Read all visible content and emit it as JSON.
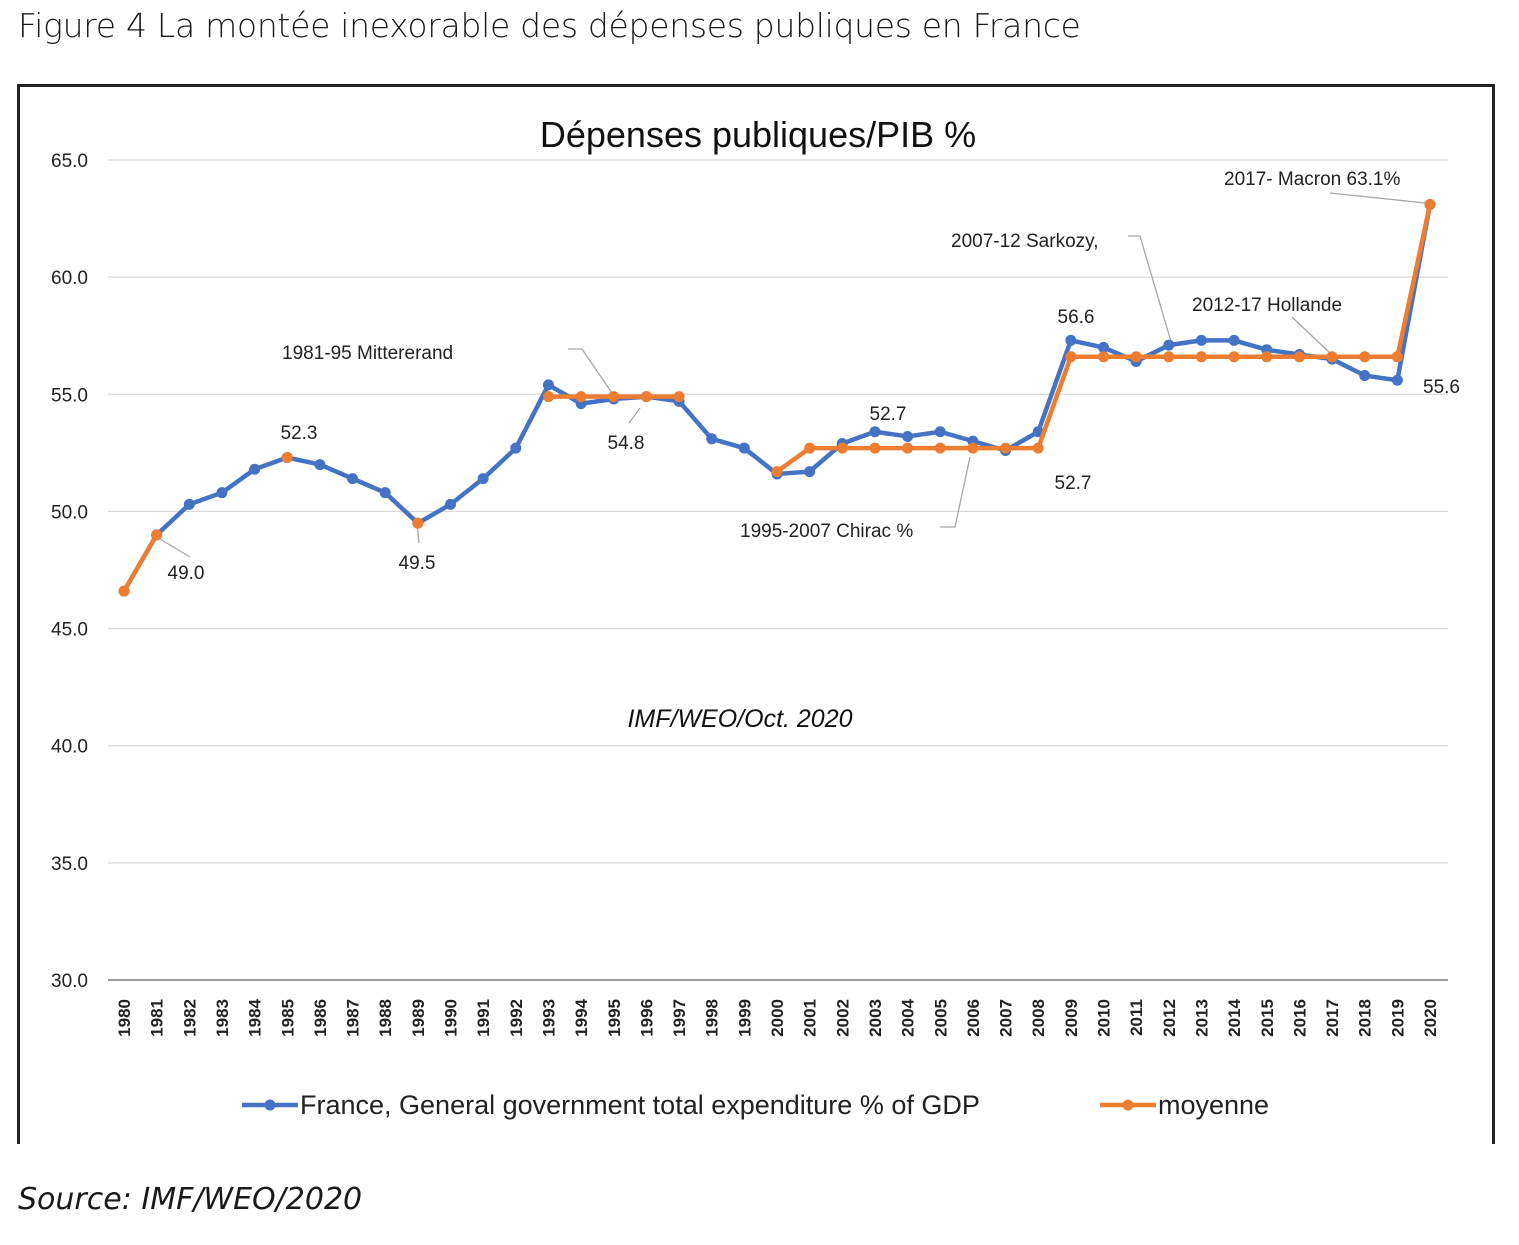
{
  "figure_caption": "Figure 4 La montée inexorable des dépenses publiques en France",
  "source_note": "Source: IMF/WEO/2020",
  "chart_data": {
    "type": "line",
    "title": "Dépenses publiques/PIB %",
    "watermark": "IMF/WEO/Oct. 2020",
    "xlabel": "",
    "ylabel": "",
    "ylim": [
      30,
      65
    ],
    "yticks": [
      "30.0",
      "35.0",
      "40.0",
      "45.0",
      "50.0",
      "55.0",
      "60.0",
      "65.0"
    ],
    "grid": "horizontal",
    "legend_position": "bottom",
    "categories": [
      "1980",
      "1981",
      "1982",
      "1983",
      "1984",
      "1985",
      "1986",
      "1987",
      "1988",
      "1989",
      "1990",
      "1991",
      "1992",
      "1993",
      "1994",
      "1995",
      "1996",
      "1997",
      "1998",
      "1999",
      "2000",
      "2001",
      "2002",
      "2003",
      "2004",
      "2005",
      "2006",
      "2007",
      "2008",
      "2009",
      "2010",
      "2011",
      "2012",
      "2013",
      "2014",
      "2015",
      "2016",
      "2017",
      "2018",
      "2019",
      "2020"
    ],
    "series": [
      {
        "name": "France, General government total expenditure % of GDP",
        "color": "#4472C4",
        "values": [
          46.6,
          49.0,
          50.3,
          50.8,
          51.8,
          52.3,
          52.0,
          51.4,
          50.8,
          49.5,
          50.3,
          51.4,
          52.7,
          55.4,
          54.6,
          54.8,
          54.9,
          54.7,
          53.1,
          52.7,
          51.6,
          51.7,
          52.9,
          53.4,
          53.2,
          53.4,
          53.0,
          52.6,
          53.4,
          57.3,
          57.0,
          56.4,
          57.1,
          57.3,
          57.3,
          56.9,
          56.7,
          56.5,
          55.8,
          55.6,
          63.1
        ]
      },
      {
        "name": "moyenne",
        "color": "#ED7D31",
        "values": [
          46.6,
          49.0,
          null,
          null,
          null,
          52.3,
          null,
          null,
          null,
          49.5,
          null,
          null,
          null,
          54.9,
          54.9,
          54.9,
          54.9,
          54.9,
          null,
          null,
          51.7,
          52.7,
          52.7,
          52.7,
          52.7,
          52.7,
          52.7,
          52.7,
          52.7,
          56.6,
          56.6,
          56.6,
          56.6,
          56.6,
          56.6,
          56.6,
          56.6,
          56.6,
          56.6,
          56.6,
          63.1
        ]
      }
    ],
    "annotations": [
      {
        "text": "1981-95 Mittererand"
      },
      {
        "text": "1995-2007 Chirac %"
      },
      {
        "text": "2007-12 Sarkozy,"
      },
      {
        "text": "2012-17 Hollande"
      },
      {
        "text": "2017- Macron 63.1%"
      },
      {
        "text": "49.0"
      },
      {
        "text": "52.3"
      },
      {
        "text": "49.5"
      },
      {
        "text": "54.8"
      },
      {
        "text": "52.7"
      },
      {
        "text": "52.7"
      },
      {
        "text": "56.6"
      },
      {
        "text": "55.6"
      }
    ]
  }
}
